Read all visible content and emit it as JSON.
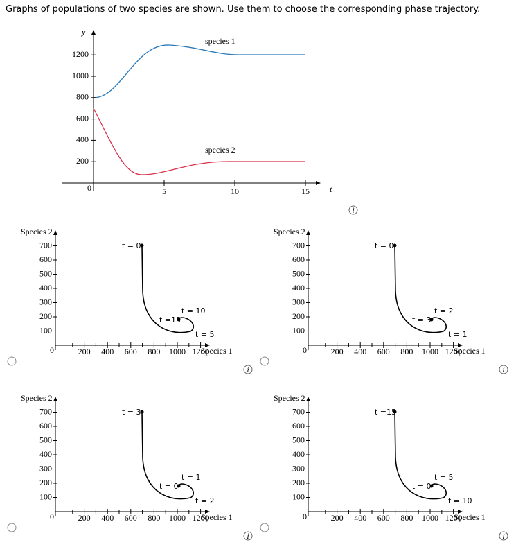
{
  "question": "Graphs of populations of two species are shown. Use them to choose the corresponding phase trajectory.",
  "time_graph": {
    "y_label": "y",
    "x_label": "t",
    "origin_label": "0",
    "yticks": [
      200,
      400,
      600,
      800,
      1000,
      1200
    ],
    "xticks": [
      5,
      10,
      15
    ],
    "curve_labels": [
      "species 1",
      "species 2"
    ]
  },
  "phase_axes": {
    "y_label": "Species 2",
    "x_label": "Species 1",
    "origin_label": "0",
    "yticks": [
      100,
      200,
      300,
      400,
      500,
      600,
      700
    ],
    "xticks": [
      200,
      400,
      600,
      800,
      1000,
      1200
    ]
  },
  "options": [
    {
      "labels": [
        "t = 0",
        "t = 10",
        "t =15",
        "t = 5"
      ]
    },
    {
      "labels": [
        "t = 0",
        "t = 2",
        "t = 3",
        "t = 1"
      ]
    },
    {
      "labels": [
        "t = 3",
        "t = 1",
        "t = 0",
        "t = 2"
      ]
    },
    {
      "labels": [
        "t =15",
        "t = 5",
        "t = 0",
        "t = 10"
      ]
    }
  ]
}
